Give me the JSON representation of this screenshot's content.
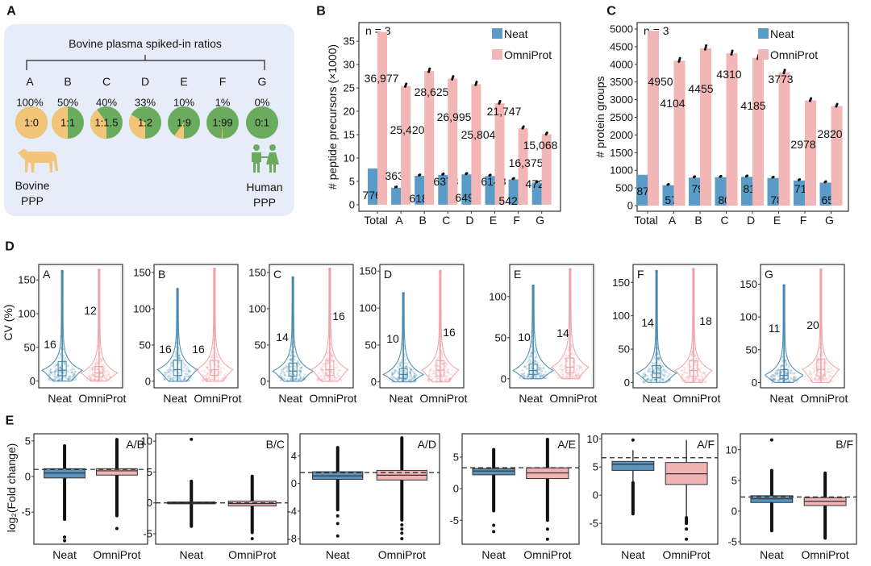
{
  "panel_labels": [
    "A",
    "B",
    "C",
    "D",
    "E"
  ],
  "panel_a": {
    "title": "Bovine plasma spiked-in ratios",
    "groups": [
      {
        "label": "A",
        "percent": "100%",
        "ratio": "1:0",
        "bovine_fraction": 1.0
      },
      {
        "label": "B",
        "percent": "50%",
        "ratio": "1:1",
        "bovine_fraction": 0.5
      },
      {
        "label": "C",
        "percent": "40%",
        "ratio": "1:1.5",
        "bovine_fraction": 0.4
      },
      {
        "label": "D",
        "percent": "33%",
        "ratio": "1:2",
        "bovine_fraction": 0.333
      },
      {
        "label": "E",
        "percent": "10%",
        "ratio": "1:9",
        "bovine_fraction": 0.1
      },
      {
        "label": "F",
        "percent": "1%",
        "ratio": "1:99",
        "bovine_fraction": 0.01
      },
      {
        "label": "G",
        "percent": "0%",
        "ratio": "0:1",
        "bovine_fraction": 0.0
      }
    ],
    "bovine_label": [
      "Bovine",
      "PPP"
    ],
    "human_label": [
      "Human",
      "PPP"
    ],
    "icons": [
      "cow-icon",
      "human-couple-icon"
    ],
    "colors": {
      "bovine": "#f3c578",
      "human": "#6aab5e",
      "background": "#e7edf8"
    }
  },
  "chart_data": [
    {
      "id": "B",
      "type": "bar",
      "n_label": "n = 3",
      "ylabel": "# peptide precursors  (×1000)",
      "categories": [
        "Total",
        "A",
        "B",
        "C",
        "D",
        "E",
        "F",
        "G"
      ],
      "scale": 1000,
      "ylim": [
        -1.4,
        39
      ],
      "yticks": [
        0,
        5,
        10,
        15,
        20,
        25,
        30,
        35
      ],
      "legend": "top-right",
      "series": [
        {
          "name": "Neat",
          "color": "#5b9bc8",
          "values": [
            7765,
            3637,
            6186,
            6378,
            6496,
            6148,
            5423,
            4724
          ],
          "labels": [
            "7765",
            "3637",
            "6186",
            "6378",
            "6496",
            "6148",
            "5423",
            "4724"
          ]
        },
        {
          "name": "OmniProt",
          "color": "#f2b6b7",
          "values": [
            36977,
            25420,
            28625,
            26995,
            25804,
            21747,
            16375,
            15068
          ],
          "labels": [
            "36,977",
            "25,420",
            "28,625",
            "26,995",
            "25,804",
            "21,747",
            "16,375",
            "15,068"
          ]
        }
      ]
    },
    {
      "id": "C",
      "type": "bar",
      "n_label": "n = 3",
      "ylabel": "# protein groups",
      "categories": [
        "Total",
        "A",
        "B",
        "C",
        "D",
        "E",
        "F",
        "G"
      ],
      "scale": 1,
      "ylim": [
        -160,
        5183
      ],
      "yticks": [
        0,
        500,
        1000,
        1500,
        2000,
        2500,
        3000,
        3500,
        4000,
        4500,
        5000
      ],
      "legend": "top-right",
      "series": [
        {
          "name": "Neat",
          "color": "#5b9bc8",
          "values": [
            873,
            576,
            792,
            804,
            815,
            782,
            711,
            651
          ],
          "labels": [
            "873",
            "576",
            "792",
            "804",
            "815",
            "782",
            "711",
            "651"
          ]
        },
        {
          "name": "OmniProt",
          "color": "#f2b6b7",
          "values": [
            4950,
            4104,
            4455,
            4310,
            4185,
            3773,
            2978,
            2820
          ],
          "labels": [
            "4950",
            "4104",
            "4455",
            "4310",
            "4185",
            "3773",
            "2978",
            "2820"
          ]
        }
      ]
    },
    {
      "id": "D",
      "type": "violin",
      "ylabel": "CV (%)",
      "xticklabels": [
        "Neat",
        "OmniProt"
      ],
      "colors": {
        "Neat": "#3f86a8",
        "OmniProt": "#ef9ea5"
      },
      "panels": [
        {
          "name": "A",
          "ylim": [
            -10,
            173
          ],
          "yticks": [
            0,
            50,
            100,
            150
          ],
          "median_labels": [
            "16",
            "12"
          ],
          "medians": [
            16,
            12
          ],
          "max": [
            163,
            165
          ]
        },
        {
          "name": "B",
          "ylim": [
            -9,
            161
          ],
          "yticks": [
            0,
            50,
            100,
            150
          ],
          "median_labels": [
            "16",
            "16"
          ],
          "medians": [
            16,
            16
          ],
          "max": [
            127,
            155
          ]
        },
        {
          "name": "C",
          "ylim": [
            -9,
            161
          ],
          "yticks": [
            0,
            50,
            100,
            150
          ],
          "median_labels": [
            "14",
            "16"
          ],
          "medians": [
            14,
            16
          ],
          "max": [
            143,
            155
          ]
        },
        {
          "name": "D",
          "ylim": [
            -8,
            159
          ],
          "yticks": [
            0,
            50,
            100,
            150
          ],
          "median_labels": [
            "10",
            "16"
          ],
          "medians": [
            10,
            16
          ],
          "max": [
            120,
            150
          ]
        },
        {
          "name": "E",
          "ylim": [
            -11,
            139
          ],
          "yticks": [
            0,
            50,
            100
          ],
          "median_labels": [
            "10",
            "14"
          ],
          "medians": [
            10,
            14
          ],
          "max": [
            113,
            133
          ]
        },
        {
          "name": "F",
          "ylim": [
            -8,
            177
          ],
          "yticks": [
            0,
            50,
            100,
            150
          ],
          "median_labels": [
            "14",
            "18"
          ],
          "medians": [
            14,
            18
          ],
          "max": [
            167,
            170
          ]
        },
        {
          "name": "G",
          "ylim": [
            -8,
            180
          ],
          "yticks": [
            0,
            50,
            100,
            150
          ],
          "median_labels": [
            "11",
            "20"
          ],
          "medians": [
            11,
            20
          ],
          "max": [
            148,
            172
          ]
        }
      ]
    },
    {
      "id": "E",
      "type": "boxplot",
      "ylabel": "log₂(Fold change)",
      "xticklabels": [
        "Neat",
        "OmniProt"
      ],
      "colors": {
        "Neat": "#5b93bd",
        "OmniProt": "#f1b2b4"
      },
      "panels": [
        {
          "name": "A/B",
          "ylim": [
            -9.5,
            6
          ],
          "yticks": [
            -5,
            0,
            5
          ],
          "expected": 1.0,
          "neat": {
            "q1": -0.2,
            "median": 0.5,
            "q3": 1.1,
            "out_range": [
              -6,
              4.3
            ],
            "points": [
              -8.5,
              -9
            ]
          },
          "omni": {
            "q1": 0.2,
            "median": 0.8,
            "q3": 1.1,
            "out_range": [
              -5.5,
              5.2
            ],
            "points": [
              -7.3
            ]
          }
        },
        {
          "name": "B/C",
          "ylim": [
            -6.7,
            11.2
          ],
          "yticks": [
            -5,
            0,
            5,
            10
          ],
          "expected": 0.0,
          "neat": {
            "q1": -0.15,
            "median": 0.0,
            "q3": 0.15,
            "out_range": [
              -3.8,
              3.5
            ],
            "points": [
              10.3
            ]
          },
          "omni": {
            "q1": -0.5,
            "median": -0.1,
            "q3": 0.3,
            "out_range": [
              -4.8,
              4.3
            ],
            "points": [
              -5.8
            ]
          }
        },
        {
          "name": "A/D",
          "ylim": [
            -8.8,
            7.2
          ],
          "yticks": [
            -8,
            -4,
            0,
            4
          ],
          "expected": 1.58,
          "neat": {
            "q1": 0.6,
            "median": 1.1,
            "q3": 1.7,
            "out_range": [
              -3.8,
              5.2
            ],
            "points": [
              -4.7,
              -5.8,
              -7.6
            ]
          },
          "omni": {
            "q1": 0.5,
            "median": 1.2,
            "q3": 1.9,
            "out_range": [
              -5.3,
              6.6
            ],
            "points": [
              -6,
              -6.6,
              -7.2,
              -8
            ]
          }
        },
        {
          "name": "A/E",
          "ylim": [
            -8.8,
            8.7
          ],
          "yticks": [
            -5,
            0,
            5
          ],
          "expected": 3.32,
          "neat": {
            "q1": 2.2,
            "median": 2.8,
            "q3": 3.2,
            "out_range": [
              -3.5,
              6.2
            ],
            "points": [
              -5.8,
              -6.8
            ]
          },
          "omni": {
            "q1": 1.6,
            "median": 2.5,
            "q3": 3.3,
            "out_range": [
              -5,
              7.8
            ],
            "points": [
              -6.4,
              -8
            ]
          }
        },
        {
          "name": "A/F",
          "ylim": [
            -8.7,
            10.9
          ],
          "yticks": [
            -5,
            0,
            5,
            10
          ],
          "expected": 6.64,
          "neat": {
            "q1": 4.4,
            "median": 5.5,
            "q3": 6.0,
            "whisker_hi": 8.0,
            "out_range": [
              -3.3,
              2.2
            ],
            "points": [
              9.8
            ]
          },
          "omni": {
            "q1": 1.9,
            "median": 3.8,
            "q3": 5.8,
            "whisker_hi": 9.8,
            "whisker_lo": -4.0,
            "out_range": [
              -5,
              -4
            ],
            "points": [
              -6,
              -7.8
            ]
          }
        },
        {
          "name": "B/F",
          "ylim": [
            -5.4,
            12.6
          ],
          "yticks": [
            -5,
            0,
            5,
            10
          ],
          "expected": 2.3,
          "neat": {
            "q1": 1.4,
            "median": 2.0,
            "q3": 2.5,
            "out_range": [
              -3.2,
              6.6
            ],
            "points": [
              11.6
            ]
          },
          "omni": {
            "q1": 0.9,
            "median": 1.6,
            "q3": 2.2,
            "out_range": [
              -4.4,
              6.2
            ],
            "points": []
          }
        }
      ]
    }
  ]
}
